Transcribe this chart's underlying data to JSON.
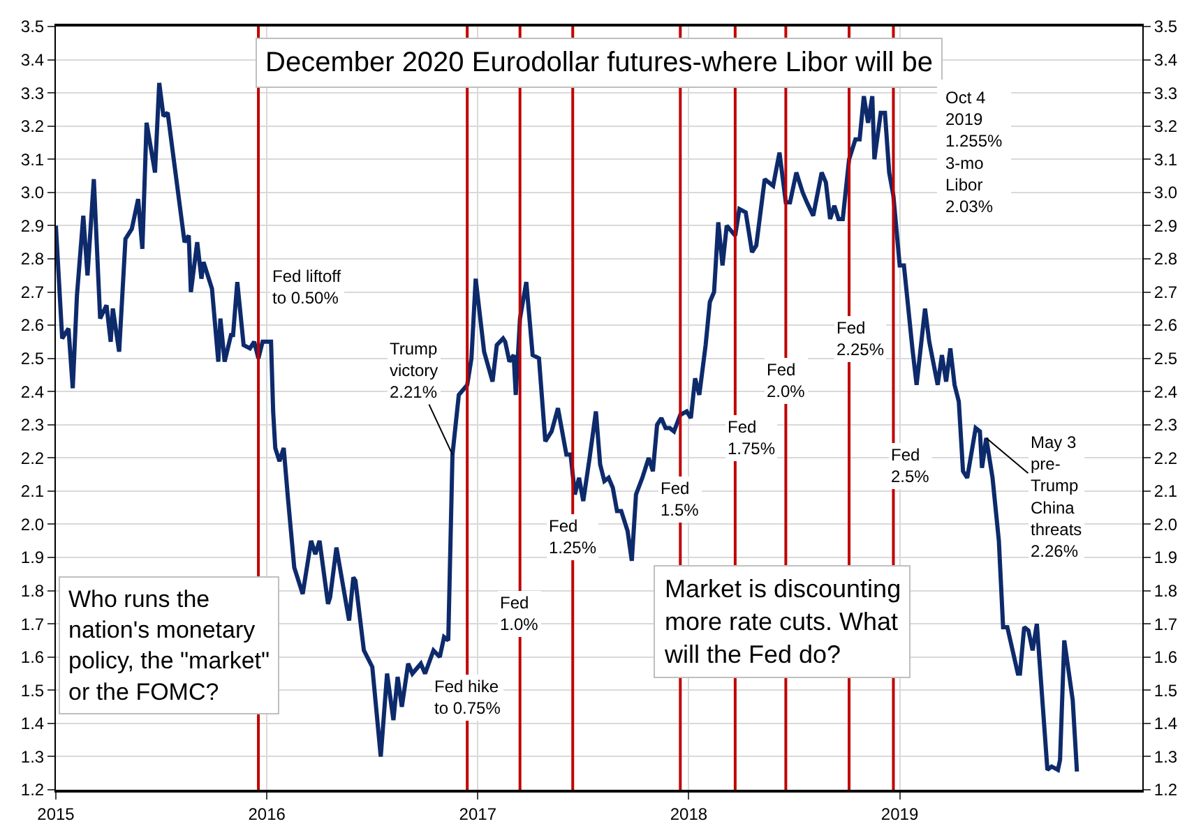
{
  "chart_data": {
    "type": "line",
    "title": "December 2020 Eurodollar futures-where Libor will be",
    "x": [
      2015.0,
      2015.03,
      2015.06,
      2015.08,
      2015.1,
      2015.13,
      2015.15,
      2015.18,
      2015.21,
      2015.24,
      2015.26,
      2015.27,
      2015.3,
      2015.33,
      2015.36,
      2015.39,
      2015.41,
      2015.43,
      2015.47,
      2015.49,
      2015.51,
      2015.53,
      2015.61,
      2015.63,
      2015.64,
      2015.67,
      2015.69,
      2015.7,
      2015.74,
      2015.77,
      2015.78,
      2015.8,
      2015.83,
      2015.84,
      2015.86,
      2015.89,
      2015.92,
      2015.94,
      2015.96,
      2015.98,
      2016.02,
      2016.03,
      2016.04,
      2016.06,
      2016.08,
      2016.1,
      2016.13,
      2016.17,
      2016.21,
      2016.23,
      2016.25,
      2016.29,
      2016.3,
      2016.33,
      2016.39,
      2016.41,
      2016.42,
      2016.46,
      2016.5,
      2016.54,
      2016.57,
      2016.6,
      2016.62,
      2016.64,
      2016.67,
      2016.69,
      2016.73,
      2016.75,
      2016.79,
      2016.82,
      2016.84,
      2016.86,
      2016.88,
      2016.91,
      2016.95,
      2016.97,
      2016.99,
      2017.03,
      2017.07,
      2017.09,
      2017.12,
      2017.13,
      2017.15,
      2017.17,
      2017.18,
      2017.2,
      2017.23,
      2017.26,
      2017.29,
      2017.32,
      2017.35,
      2017.38,
      2017.42,
      2017.44,
      2017.46,
      2017.48,
      2017.5,
      2017.53,
      2017.56,
      2017.58,
      2017.6,
      2017.62,
      2017.64,
      2017.66,
      2017.68,
      2017.71,
      2017.73,
      2017.75,
      2017.78,
      2017.81,
      2017.83,
      2017.85,
      2017.87,
      2017.89,
      2017.91,
      2017.93,
      2017.96,
      2017.99,
      2018.01,
      2018.03,
      2018.05,
      2018.08,
      2018.1,
      2018.12,
      2018.14,
      2018.16,
      2018.18,
      2018.22,
      2018.24,
      2018.27,
      2018.3,
      2018.32,
      2018.36,
      2018.4,
      2018.43,
      2018.46,
      2018.48,
      2018.51,
      2018.54,
      2018.56,
      2018.59,
      2018.63,
      2018.65,
      2018.67,
      2018.69,
      2018.71,
      2018.73,
      2018.76,
      2018.79,
      2018.81,
      2018.83,
      2018.85,
      2018.87,
      2018.88,
      2018.91,
      2018.93,
      2018.95,
      2018.97,
      2019.0,
      2019.02,
      2019.06,
      2019.08,
      2019.12,
      2019.14,
      2019.18,
      2019.2,
      2019.22,
      2019.24,
      2019.26,
      2019.28,
      2019.3,
      2019.32,
      2019.36,
      2019.38,
      2019.39,
      2019.41,
      2019.44,
      2019.47,
      2019.49,
      2019.51,
      2019.56,
      2019.57,
      2019.59,
      2019.61,
      2019.63,
      2019.65,
      2019.7,
      2019.72,
      2019.75,
      2019.76,
      2019.78,
      2019.82,
      2019.84
    ],
    "series": [
      {
        "color": "#0d2a6b",
        "values": [
          2.9,
          2.56,
          2.59,
          2.41,
          2.69,
          2.93,
          2.75,
          3.04,
          2.62,
          2.66,
          2.55,
          2.65,
          2.52,
          2.86,
          2.89,
          2.98,
          2.83,
          3.21,
          3.06,
          3.33,
          3.23,
          3.24,
          2.85,
          2.87,
          2.7,
          2.85,
          2.74,
          2.79,
          2.71,
          2.49,
          2.62,
          2.49,
          2.57,
          2.57,
          2.73,
          2.54,
          2.53,
          2.55,
          2.5,
          2.55,
          2.55,
          2.34,
          2.23,
          2.19,
          2.23,
          2.08,
          1.87,
          1.79,
          1.95,
          1.91,
          1.95,
          1.76,
          1.78,
          1.93,
          1.71,
          1.84,
          1.83,
          1.62,
          1.57,
          1.3,
          1.55,
          1.41,
          1.54,
          1.45,
          1.58,
          1.55,
          1.58,
          1.55,
          1.62,
          1.6,
          1.66,
          1.65,
          2.21,
          2.39,
          2.42,
          2.5,
          2.74,
          2.52,
          2.43,
          2.54,
          2.56,
          2.55,
          2.49,
          2.51,
          2.39,
          2.62,
          2.73,
          2.51,
          2.5,
          2.25,
          2.28,
          2.35,
          2.21,
          2.21,
          2.09,
          2.14,
          2.07,
          2.2,
          2.34,
          2.18,
          2.13,
          2.14,
          2.11,
          2.04,
          2.04,
          1.98,
          1.89,
          2.09,
          2.14,
          2.2,
          2.16,
          2.3,
          2.32,
          2.29,
          2.29,
          2.28,
          2.33,
          2.34,
          2.32,
          2.44,
          2.39,
          2.54,
          2.67,
          2.7,
          2.91,
          2.78,
          2.9,
          2.87,
          2.95,
          2.94,
          2.82,
          2.84,
          3.04,
          3.02,
          3.12,
          2.97,
          2.97,
          3.06,
          3.0,
          2.97,
          2.93,
          3.06,
          3.03,
          2.92,
          2.96,
          2.92,
          2.92,
          3.1,
          3.16,
          3.16,
          3.29,
          3.21,
          3.29,
          3.1,
          3.24,
          3.24,
          3.06,
          2.99,
          2.78,
          2.78,
          2.53,
          2.42,
          2.65,
          2.55,
          2.42,
          2.51,
          2.43,
          2.53,
          2.42,
          2.37,
          2.16,
          2.14,
          2.29,
          2.28,
          2.17,
          2.26,
          2.14,
          1.95,
          1.69,
          1.69,
          1.55,
          1.55,
          1.69,
          1.68,
          1.62,
          1.7,
          1.26,
          1.27,
          1.26,
          1.29,
          1.65,
          1.47,
          1.255
        ]
      }
    ],
    "xlim": [
      2015,
      2020.15
    ],
    "xticks": [
      2015,
      2016,
      2017,
      2018,
      2019
    ],
    "ylim": [
      1.2,
      3.5
    ],
    "yticks": [
      1.2,
      1.3,
      1.4,
      1.5,
      1.6,
      1.7,
      1.8,
      1.9,
      {
        "value": 2.0,
        "label": "2.0"
      },
      2.1,
      2.2,
      2.3,
      2.4,
      2.5,
      2.6,
      2.7,
      2.8,
      2.9,
      {
        "value": 3.0,
        "label": "3.0"
      },
      3.1,
      3.2,
      3.3,
      3.4,
      3.5
    ],
    "y2lim": [
      1.2,
      3.5
    ],
    "y2ticks": [
      1.2,
      1.3,
      1.4,
      1.5,
      1.6,
      1.7,
      1.8,
      1.9,
      {
        "value": 2.0,
        "label": "2.0"
      },
      2.1,
      2.2,
      2.3,
      2.4,
      2.5,
      2.6,
      2.7,
      2.8,
      2.9,
      {
        "value": 3.0,
        "label": "3.0"
      },
      3.1,
      3.2,
      3.3,
      3.4,
      3.5
    ],
    "grid": true,
    "marker": "none",
    "line_style": "solid",
    "ref_lines": [
      {
        "axis": "x",
        "value": 2015.96,
        "label": "Fed liftoff\nto 0.50%",
        "color": "#c00000"
      },
      {
        "axis": "x",
        "value": 2016.95,
        "label": "Fed hike\nto 0.75%",
        "color": "#c00000"
      },
      {
        "axis": "x",
        "value": 2017.2,
        "label": "Fed\n1.0%",
        "color": "#c00000"
      },
      {
        "axis": "x",
        "value": 2017.45,
        "label": "Fed\n1.25%",
        "color": "#c00000"
      },
      {
        "axis": "x",
        "value": 2017.96,
        "label": "Fed\n1.5%",
        "color": "#c00000"
      },
      {
        "axis": "x",
        "value": 2018.22,
        "label": "Fed\n1.75%",
        "color": "#c00000"
      },
      {
        "axis": "x",
        "value": 2018.46,
        "label": "Fed\n2.0%",
        "color": "#c00000"
      },
      {
        "axis": "x",
        "value": 2018.76,
        "label": "Fed\n2.25%",
        "color": "#c00000"
      },
      {
        "axis": "x",
        "value": 2018.97,
        "label": "Fed\n2.5%",
        "color": "#c00000"
      }
    ],
    "annotations": [
      {
        "text": "Trump\nvictory\n2.21%",
        "x": 2016.88,
        "y": 2.21
      },
      {
        "text": "May 3\npre-\nTrump\nChina\nthreats\n2.26%",
        "x": 2019.41,
        "y": 2.26
      },
      "Oct 4\n2019\n1.255%\n3-mo\nLibor\n2.03%",
      "Who runs the\nnation's monetary\npolicy, the \"market\"\nor the FOMC?",
      "Market is discounting\nmore rate cuts. What\nwill the Fed do?"
    ]
  }
}
